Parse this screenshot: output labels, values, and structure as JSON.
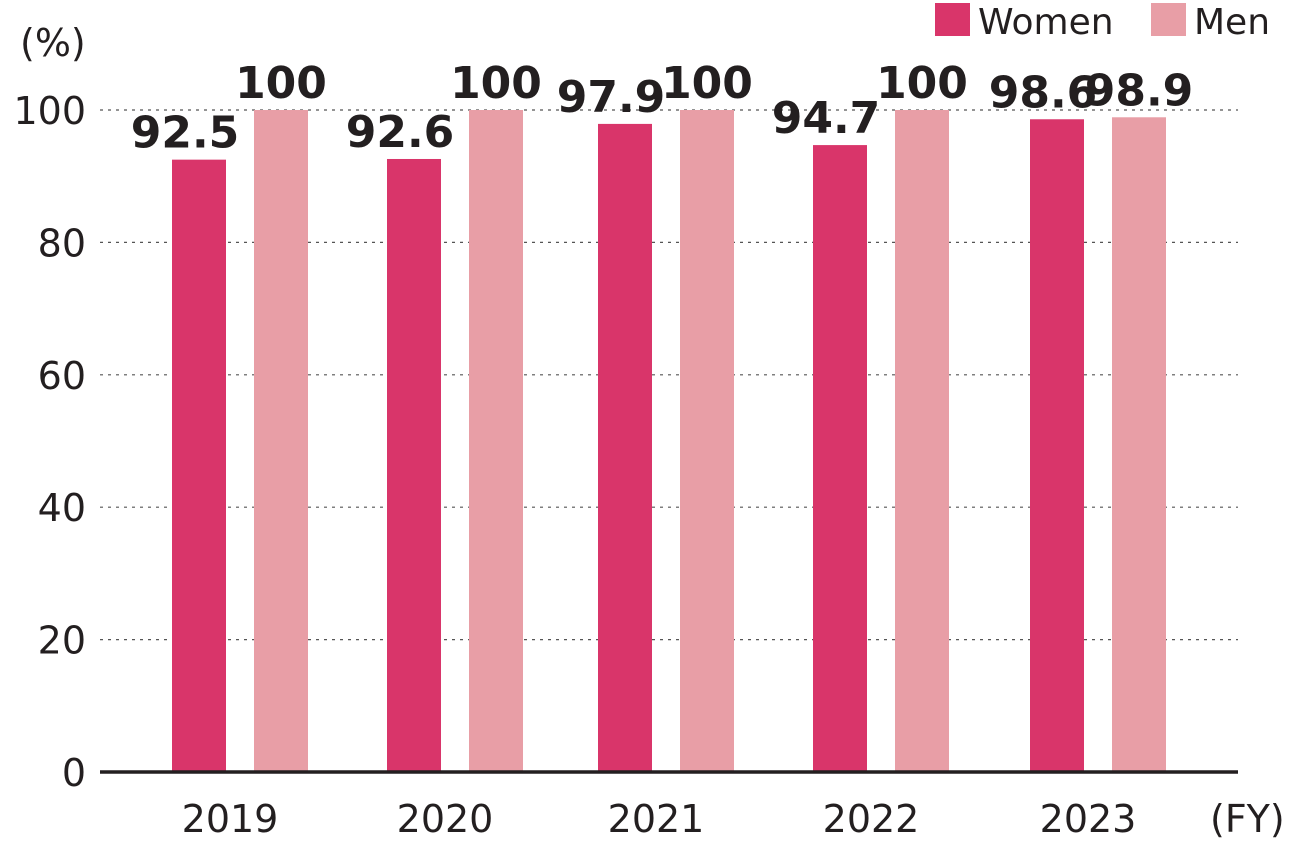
{
  "chart_data": {
    "type": "bar",
    "categories": [
      "2019",
      "2020",
      "2021",
      "2022",
      "2023"
    ],
    "series": [
      {
        "name": "Women",
        "color": "#d9356a",
        "values": [
          92.5,
          92.6,
          97.9,
          94.7,
          98.6
        ],
        "labels": [
          "92.5",
          "92.6",
          "97.9",
          "94.7",
          "98.6"
        ]
      },
      {
        "name": "Men",
        "color": "#e89ea6",
        "values": [
          100,
          100,
          100,
          100,
          98.9
        ],
        "labels": [
          "100",
          "100",
          "100",
          "100",
          "98.9"
        ]
      }
    ],
    "y_unit": "(%)",
    "x_unit": "(FY)",
    "ylim": [
      0,
      100
    ],
    "yticks": [
      "0",
      "20",
      "40",
      "60",
      "80",
      "100"
    ],
    "grid": true,
    "legend_position": "top-right"
  }
}
